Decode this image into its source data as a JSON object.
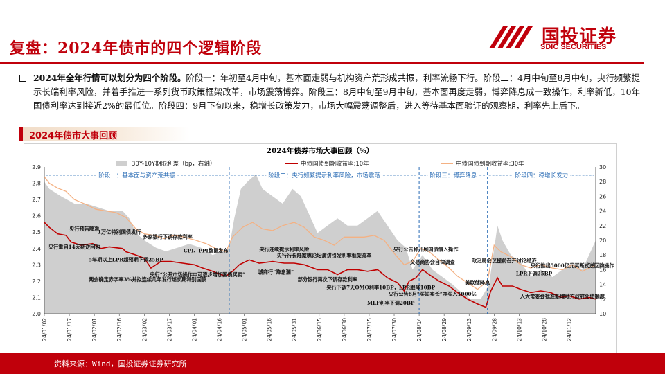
{
  "page": {
    "title": "复盘：2024年债市的四个逻辑阶段",
    "summary_lead": "2024年全年行情可以划分为四个阶段。",
    "summary_body": "阶段一：年初至4月中旬，基本面走弱与机构资产荒形成共振，利率流畅下行。阶段二：4月中旬至8月中旬，央行频繁提示长端利率风险，并着手推进一系列货币政策框架改革，市场震荡博弈。阶段三：8月中旬至9月中旬，基本面再度走弱，博弈降息成一致操作，利率新低，10年国债利率达到接近2%的最低位。阶段四：9月下旬以来，稳增长政策发力，市场大幅震荡调整后，进入等待基本面验证的观察期，利率先上后下。",
    "section_label": "2024年债市大事回顾",
    "source": "资料来源：Wind，国投证券证券研究所"
  },
  "logo": {
    "cn": "国投证券",
    "en": "SDIC SECURITIES",
    "color": "#c0000b"
  },
  "chart_data": {
    "type": "line",
    "title": "2024年债券市场大事回顾（%）",
    "colors": {
      "spread": "#cfcfcf",
      "y10": "#c00000",
      "y30": "#f4b183",
      "phase": "#2a6cb5"
    },
    "left_axis": {
      "ylim": [
        2.0,
        2.9
      ],
      "ticks": [
        "2.0",
        "2.1",
        "2.2",
        "2.3",
        "2.4",
        "2.5",
        "2.6",
        "2.7",
        "2.8",
        "2.9"
      ]
    },
    "right_axis": {
      "ylim": [
        10,
        30
      ],
      "ticks": [
        "10",
        "12",
        "14",
        "16",
        "18",
        "20",
        "22",
        "24",
        "26",
        "28",
        "30"
      ]
    },
    "x_ticks": [
      "24/01/02",
      "24/01/17",
      "24/02/01",
      "24/02/16",
      "24/03/02",
      "24/03/17",
      "24/04/01",
      "24/04/16",
      "24/05/01",
      "24/05/16",
      "24/05/31",
      "24/06/15",
      "24/06/30",
      "24/07/15",
      "24/07/30",
      "24/08/14",
      "24/08/29",
      "24/09/13",
      "24/09/28",
      "24/10/13",
      "24/10/28",
      "24/11/12"
    ],
    "x_range": [
      "2024-01-02",
      "2024-11-28"
    ],
    "series": [
      {
        "name": "30Y-10Y期限利差（bp，右轴）",
        "kind": "area",
        "axis": "right",
        "points": [
          [
            "2024-01-02",
            28
          ],
          [
            "2024-01-05",
            27
          ],
          [
            "2024-01-12",
            26
          ],
          [
            "2024-01-20",
            25
          ],
          [
            "2024-01-27",
            25
          ],
          [
            "2024-02-03",
            24.5
          ],
          [
            "2024-02-10",
            24
          ],
          [
            "2024-02-18",
            24
          ],
          [
            "2024-02-22",
            23
          ],
          [
            "2024-02-26",
            21
          ],
          [
            "2024-03-02",
            20
          ],
          [
            "2024-03-09",
            19
          ],
          [
            "2024-03-15",
            18.5
          ],
          [
            "2024-03-22",
            19
          ],
          [
            "2024-03-29",
            19.5
          ],
          [
            "2024-04-05",
            19
          ],
          [
            "2024-04-12",
            18
          ],
          [
            "2024-04-18",
            18.5
          ],
          [
            "2024-04-22",
            19
          ],
          [
            "2024-04-25",
            23
          ],
          [
            "2024-04-29",
            27
          ],
          [
            "2024-05-03",
            28
          ],
          [
            "2024-05-08",
            29
          ],
          [
            "2024-05-12",
            27
          ],
          [
            "2024-05-18",
            26
          ],
          [
            "2024-05-24",
            25
          ],
          [
            "2024-05-30",
            27
          ],
          [
            "2024-06-04",
            26
          ],
          [
            "2024-06-08",
            24
          ],
          [
            "2024-06-14",
            21
          ],
          [
            "2024-06-20",
            22
          ],
          [
            "2024-06-26",
            23
          ],
          [
            "2024-07-02",
            22
          ],
          [
            "2024-07-08",
            22
          ],
          [
            "2024-07-14",
            23
          ],
          [
            "2024-07-20",
            24
          ],
          [
            "2024-07-26",
            22
          ],
          [
            "2024-08-01",
            20
          ],
          [
            "2024-08-06",
            19
          ],
          [
            "2024-08-10",
            16
          ],
          [
            "2024-08-16",
            18
          ],
          [
            "2024-08-22",
            16
          ],
          [
            "2024-08-28",
            15
          ],
          [
            "2024-09-03",
            14
          ],
          [
            "2024-09-08",
            13
          ],
          [
            "2024-09-14",
            12
          ],
          [
            "2024-09-20",
            12
          ],
          [
            "2024-09-25",
            14
          ],
          [
            "2024-09-30",
            22
          ],
          [
            "2024-10-03",
            20
          ],
          [
            "2024-10-08",
            18
          ],
          [
            "2024-10-14",
            17
          ],
          [
            "2024-10-20",
            15
          ],
          [
            "2024-10-26",
            16
          ],
          [
            "2024-11-02",
            15
          ],
          [
            "2024-11-08",
            16
          ],
          [
            "2024-11-14",
            17
          ],
          [
            "2024-11-20",
            16
          ],
          [
            "2024-11-28",
            20
          ]
        ]
      },
      {
        "name": "中债国债到期收益率:10年",
        "kind": "line",
        "axis": "left",
        "points": [
          [
            "2024-01-02",
            2.56
          ],
          [
            "2024-01-05",
            2.53
          ],
          [
            "2024-01-10",
            2.49
          ],
          [
            "2024-01-15",
            2.48
          ],
          [
            "2024-01-18",
            2.44
          ],
          [
            "2024-01-24",
            2.42
          ],
          [
            "2024-01-31",
            2.43
          ],
          [
            "2024-02-05",
            2.4
          ],
          [
            "2024-02-10",
            2.41
          ],
          [
            "2024-02-18",
            2.4
          ],
          [
            "2024-02-20",
            2.38
          ],
          [
            "2024-02-26",
            2.36
          ],
          [
            "2024-03-02",
            2.34
          ],
          [
            "2024-03-06",
            2.28
          ],
          [
            "2024-03-12",
            2.32
          ],
          [
            "2024-03-18",
            2.32
          ],
          [
            "2024-03-25",
            2.31
          ],
          [
            "2024-04-01",
            2.3
          ],
          [
            "2024-04-06",
            2.28
          ],
          [
            "2024-04-12",
            2.26
          ],
          [
            "2024-04-17",
            2.24
          ],
          [
            "2024-04-20",
            2.23
          ],
          [
            "2024-04-24",
            2.26
          ],
          [
            "2024-04-28",
            2.3
          ],
          [
            "2024-05-04",
            2.33
          ],
          [
            "2024-05-10",
            2.31
          ],
          [
            "2024-05-18",
            2.32
          ],
          [
            "2024-05-25",
            2.31
          ],
          [
            "2024-05-31",
            2.31
          ],
          [
            "2024-06-06",
            2.3
          ],
          [
            "2024-06-14",
            2.27
          ],
          [
            "2024-06-20",
            2.27
          ],
          [
            "2024-06-26",
            2.24
          ],
          [
            "2024-07-02",
            2.27
          ],
          [
            "2024-07-08",
            2.27
          ],
          [
            "2024-07-14",
            2.26
          ],
          [
            "2024-07-20",
            2.27
          ],
          [
            "2024-07-26",
            2.22
          ],
          [
            "2024-08-01",
            2.19
          ],
          [
            "2024-08-05",
            2.14
          ],
          [
            "2024-08-08",
            2.2
          ],
          [
            "2024-08-12",
            2.22
          ],
          [
            "2024-08-16",
            2.27
          ],
          [
            "2024-08-20",
            2.24
          ],
          [
            "2024-08-26",
            2.2
          ],
          [
            "2024-09-01",
            2.17
          ],
          [
            "2024-09-06",
            2.13
          ],
          [
            "2024-09-12",
            2.09
          ],
          [
            "2024-09-18",
            2.06
          ],
          [
            "2024-09-23",
            2.04
          ],
          [
            "2024-09-26",
            2.14
          ],
          [
            "2024-09-30",
            2.22
          ],
          [
            "2024-10-03",
            2.17
          ],
          [
            "2024-10-09",
            2.17
          ],
          [
            "2024-10-14",
            2.15
          ],
          [
            "2024-10-20",
            2.13
          ],
          [
            "2024-10-26",
            2.14
          ],
          [
            "2024-11-01",
            2.13
          ],
          [
            "2024-11-07",
            2.1
          ],
          [
            "2024-11-12",
            2.11
          ],
          [
            "2024-11-18",
            2.09
          ],
          [
            "2024-11-24",
            2.1
          ],
          [
            "2024-11-28",
            2.09
          ]
        ]
      },
      {
        "name": "中债国债到期收益率:30年",
        "kind": "line",
        "axis": "left",
        "points": [
          [
            "2024-01-02",
            2.84
          ],
          [
            "2024-01-05",
            2.8
          ],
          [
            "2024-01-10",
            2.77
          ],
          [
            "2024-01-15",
            2.75
          ],
          [
            "2024-01-20",
            2.7
          ],
          [
            "2024-01-27",
            2.67
          ],
          [
            "2024-02-02",
            2.64
          ],
          [
            "2024-02-08",
            2.63
          ],
          [
            "2024-02-14",
            2.62
          ],
          [
            "2024-02-20",
            2.59
          ],
          [
            "2024-02-26",
            2.52
          ],
          [
            "2024-03-02",
            2.49
          ],
          [
            "2024-03-08",
            2.48
          ],
          [
            "2024-03-14",
            2.46
          ],
          [
            "2024-03-20",
            2.48
          ],
          [
            "2024-03-26",
            2.47
          ],
          [
            "2024-04-02",
            2.45
          ],
          [
            "2024-04-08",
            2.43
          ],
          [
            "2024-04-14",
            2.4
          ],
          [
            "2024-04-20",
            2.38
          ],
          [
            "2024-04-24",
            2.47
          ],
          [
            "2024-04-30",
            2.53
          ],
          [
            "2024-05-06",
            2.56
          ],
          [
            "2024-05-12",
            2.52
          ],
          [
            "2024-05-18",
            2.51
          ],
          [
            "2024-05-24",
            2.54
          ],
          [
            "2024-05-31",
            2.56
          ],
          [
            "2024-06-06",
            2.53
          ],
          [
            "2024-06-12",
            2.47
          ],
          [
            "2024-06-18",
            2.45
          ],
          [
            "2024-06-24",
            2.42
          ],
          [
            "2024-06-30",
            2.47
          ],
          [
            "2024-07-06",
            2.47
          ],
          [
            "2024-07-12",
            2.47
          ],
          [
            "2024-07-18",
            2.48
          ],
          [
            "2024-07-24",
            2.45
          ],
          [
            "2024-07-30",
            2.37
          ],
          [
            "2024-08-05",
            2.3
          ],
          [
            "2024-08-10",
            2.32
          ],
          [
            "2024-08-15",
            2.4
          ],
          [
            "2024-08-20",
            2.38
          ],
          [
            "2024-08-26",
            2.33
          ],
          [
            "2024-09-01",
            2.28
          ],
          [
            "2024-09-06",
            2.23
          ],
          [
            "2024-09-12",
            2.19
          ],
          [
            "2024-09-18",
            2.15
          ],
          [
            "2024-09-24",
            2.2
          ],
          [
            "2024-09-28",
            2.42
          ],
          [
            "2024-10-02",
            2.38
          ],
          [
            "2024-10-08",
            2.35
          ],
          [
            "2024-10-14",
            2.3
          ],
          [
            "2024-10-20",
            2.28
          ],
          [
            "2024-10-26",
            2.3
          ],
          [
            "2024-11-02",
            2.28
          ],
          [
            "2024-11-08",
            2.27
          ],
          [
            "2024-11-14",
            2.3
          ],
          [
            "2024-11-20",
            2.26
          ],
          [
            "2024-11-28",
            2.3
          ]
        ]
      }
    ],
    "phase_dividers": [
      "2024-04-22",
      "2024-08-14",
      "2024-09-24"
    ],
    "phases": [
      {
        "label": "阶段一：基本面与资产荒共振",
        "start": "2024-01-02",
        "end": "2024-04-22"
      },
      {
        "label": "阶段二：央行频繁提示利率风险，市场震荡",
        "start": "2024-04-22",
        "end": "2024-08-14"
      },
      {
        "label": "阶段三：博弈降息",
        "start": "2024-08-14",
        "end": "2024-09-24"
      },
      {
        "label": "阶段四：稳增长发力",
        "start": "2024-09-24",
        "end": "2024-11-28"
      }
    ],
    "annotations": [
      {
        "text": "央行预告降准",
        "date": "2024-01-26",
        "y": 2.51
      },
      {
        "text": "1万亿特别国债发行",
        "date": "2024-02-16",
        "y": 2.49
      },
      {
        "text": "多家银行下调存款利率",
        "date": "2024-03-16",
        "y": 2.46
      },
      {
        "text": "央行重启14天期逆回购",
        "date": "2024-01-20",
        "y": 2.4
      },
      {
        "text": "5年期以上LPR超预期下调25BP",
        "date": "2024-02-20",
        "y": 2.32
      },
      {
        "text": "CPI、PPI数据发布",
        "date": "2024-04-08",
        "y": 2.375
      },
      {
        "text": "两会确定赤字率3%并拟连续几年发行超长期特别国债",
        "date": "2024-03-04",
        "y": 2.2
      },
      {
        "text": "央行“公开市场操作中可逐步增加国债买卖”",
        "date": "2024-04-03",
        "y": 2.23
      },
      {
        "text": "央行连续提示利率风险",
        "date": "2024-05-25",
        "y": 2.385
      },
      {
        "text": "城商行“降息潮”",
        "date": "2024-05-20",
        "y": 2.245
      },
      {
        "text": "央行行长陆家嘴论坛演讲引发利率框架改革",
        "date": "2024-06-18",
        "y": 2.345
      },
      {
        "text": "部分银行再次下调存款利率",
        "date": "2024-06-20",
        "y": 2.2
      },
      {
        "text": "央行下调7天OMO利率10BP，LPR跟降10BP",
        "date": "2024-07-22",
        "y": 2.15
      },
      {
        "text": "MLF利率下调20BP",
        "date": "2024-07-28",
        "y": 2.055
      },
      {
        "text": "央行公告称开展国债借入操作",
        "date": "2024-08-18",
        "y": 2.385
      },
      {
        "text": "交易商协会自律调查",
        "date": "2024-08-22",
        "y": 2.305
      },
      {
        "text": "央行公告8月“买短卖长”净买入1000亿",
        "date": "2024-08-22",
        "y": 2.11
      },
      {
        "text": "政治局会议提前召开讨论经济",
        "date": "2024-10-04",
        "y": 2.315
      },
      {
        "text": "美联储降息",
        "date": "2024-09-18",
        "y": 2.18
      },
      {
        "text": "LPR下调25BP",
        "date": "2024-10-22",
        "y": 2.235
      },
      {
        "text": "央行推出5000亿元买断式逆回购操作",
        "date": "2024-11-14",
        "y": 2.285
      },
      {
        "text": "人大常委会批准新增地方政府化债额度",
        "date": "2024-11-08",
        "y": 2.095
      }
    ]
  }
}
